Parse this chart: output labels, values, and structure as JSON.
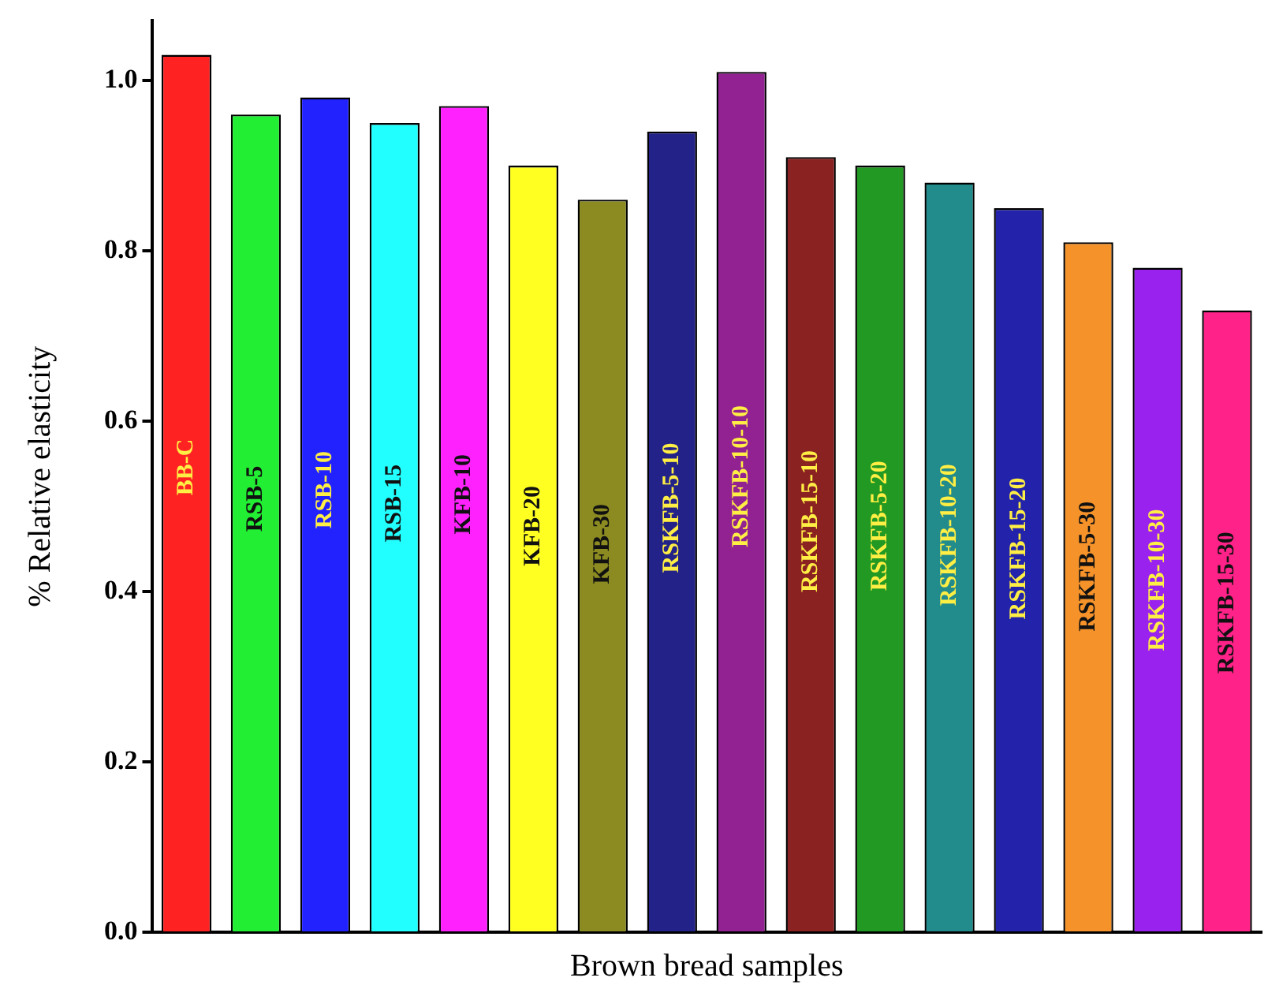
{
  "chart_data": {
    "type": "bar",
    "xlabel": "Brown bread samples",
    "ylabel": "% Relative elasticity",
    "categories": [
      "BB-C",
      "RSB-5",
      "RSB-10",
      "RSB-15",
      "KFB-10",
      "KFB-20",
      "KFB-30",
      "RSKFB-5-10",
      "RSKFB-10-10",
      "RSKFB-15-10",
      "RSKFB-5-20",
      "RSKFB-10-20",
      "RSKFB-15-20",
      "RSKFB-5-30",
      "RSKFB-10-30",
      "RSKFB-15-30"
    ],
    "values": [
      1.03,
      0.96,
      0.98,
      0.95,
      0.97,
      0.9,
      0.86,
      0.94,
      1.01,
      0.91,
      0.9,
      0.88,
      0.85,
      0.81,
      0.78,
      0.73
    ],
    "colors": [
      "#ff2222",
      "#22ee33",
      "#2222ff",
      "#22ffff",
      "#ff22ff",
      "#ffff22",
      "#8b8b22",
      "#222288",
      "#922292",
      "#8b2222",
      "#229922",
      "#228b8b",
      "#2222aa",
      "#f5922a",
      "#9922ee",
      "#ff2288"
    ],
    "ylim": [
      0,
      1.07
    ],
    "yticks": [
      {
        "value": 0,
        "label": "0.0"
      },
      {
        "value": 0.2,
        "label": "0.2"
      },
      {
        "value": 0.4,
        "label": "0.4"
      },
      {
        "value": 0.6,
        "label": "0.6"
      },
      {
        "value": 0.8,
        "label": "0.8"
      },
      {
        "value": 1,
        "label": "1.0"
      }
    ],
    "grid": false,
    "legend": false,
    "tick_labels": "y"
  }
}
